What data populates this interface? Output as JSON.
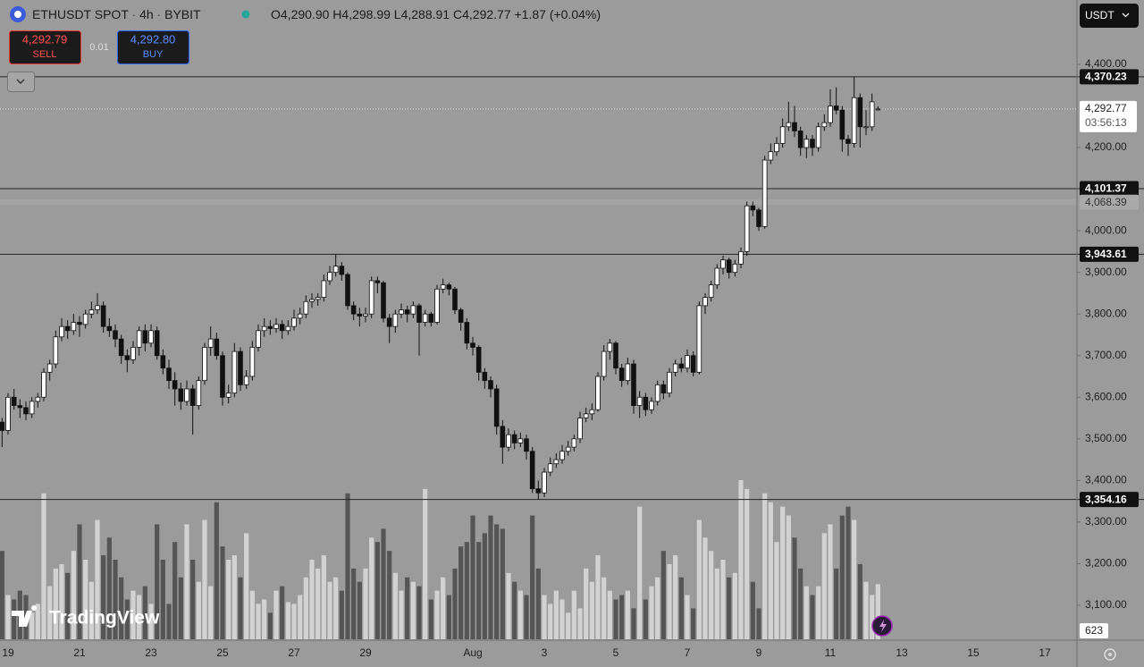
{
  "header": {
    "symbol": "ETHUSDT SPOT",
    "interval": "4h",
    "exchange": "BYBIT",
    "ohlc": [
      {
        "key": "O",
        "value": "4,290.90"
      },
      {
        "key": "H",
        "value": "4,298.99"
      },
      {
        "key": "L",
        "value": "4,288.91"
      },
      {
        "key": "C",
        "value": "4,292.77"
      }
    ],
    "change": "+1.87 (+0.04%)"
  },
  "trade": {
    "sell_price": "4,292.79",
    "sell": "SELL",
    "qty": "0.01",
    "buy_price": "4,292.80",
    "buy": "BUY"
  },
  "currency": "USDT",
  "watermark": "TradingView",
  "chart_data": {
    "type": "candlestick",
    "ylim": [
      3018.2,
      4554.7
    ],
    "yticks": [
      {
        "value": 4400,
        "label": "4,400.00"
      },
      {
        "value": 4200,
        "label": "4,200.00"
      },
      {
        "value": 4000,
        "label": "4,000.00"
      },
      {
        "value": 3900,
        "label": "3,900.00"
      },
      {
        "value": 3800,
        "label": "3,800.00"
      },
      {
        "value": 3700,
        "label": "3,700.00"
      },
      {
        "value": 3600,
        "label": "3,600.00"
      },
      {
        "value": 3500,
        "label": "3,500.00"
      },
      {
        "value": 3400,
        "label": "3,400.00"
      },
      {
        "value": 3300,
        "label": "3,300.00"
      },
      {
        "value": 3200,
        "label": "3,200.00"
      },
      {
        "value": 3100,
        "label": "3,100.00"
      }
    ],
    "xlim": [
      -0.35,
      180.4
    ],
    "xticks": [
      {
        "value": 1,
        "label": "19"
      },
      {
        "value": 13,
        "label": "21"
      },
      {
        "value": 25,
        "label": "23"
      },
      {
        "value": 37,
        "label": "25"
      },
      {
        "value": 49,
        "label": "27"
      },
      {
        "value": 61,
        "label": "29"
      },
      {
        "value": 79,
        "label": "Aug"
      },
      {
        "value": 91,
        "label": "3"
      },
      {
        "value": 103,
        "label": "5"
      },
      {
        "value": 115,
        "label": "7"
      },
      {
        "value": 127,
        "label": "9"
      },
      {
        "value": 139,
        "label": "11"
      },
      {
        "value": 151,
        "label": "13"
      },
      {
        "value": 163,
        "label": "15"
      },
      {
        "value": 175,
        "label": "17"
      }
    ],
    "up_color": "#ffffff",
    "down_color": "#111111",
    "volume_up_color": "#d2d2d2",
    "volume_down_color": "#555555",
    "levels": [
      {
        "value": 4370.23,
        "label": "4,370.23"
      },
      {
        "value": 4101.37,
        "label": "4,101.37"
      },
      {
        "value": 3943.61,
        "label": "3,943.61"
      },
      {
        "value": 3354.16,
        "label": "3,354.16"
      }
    ],
    "marker": {
      "value": 4068.39,
      "label": "4,068.39"
    },
    "last_price": {
      "value": 4292.77,
      "label": "4,292.77",
      "countdown": "03:56:13"
    },
    "last_volume": {
      "value": 623,
      "label": "623"
    },
    "ohlc": [
      [
        3540,
        3550,
        3480,
        3520
      ],
      [
        3520,
        3610,
        3510,
        3600
      ],
      [
        3600,
        3620,
        3570,
        3580
      ],
      [
        3580,
        3595,
        3550,
        3575
      ],
      [
        3575,
        3590,
        3545,
        3560
      ],
      [
        3560,
        3600,
        3550,
        3590
      ],
      [
        3590,
        3610,
        3575,
        3600
      ],
      [
        3600,
        3670,
        3590,
        3660
      ],
      [
        3660,
        3690,
        3640,
        3680
      ],
      [
        3680,
        3760,
        3670,
        3745
      ],
      [
        3745,
        3790,
        3735,
        3770
      ],
      [
        3770,
        3785,
        3740,
        3760
      ],
      [
        3760,
        3800,
        3750,
        3780
      ],
      [
        3780,
        3795,
        3745,
        3775
      ],
      [
        3775,
        3810,
        3765,
        3800
      ],
      [
        3800,
        3830,
        3790,
        3810
      ],
      [
        3810,
        3850,
        3800,
        3820
      ],
      [
        3820,
        3830,
        3755,
        3770
      ],
      [
        3770,
        3790,
        3745,
        3760
      ],
      [
        3760,
        3775,
        3720,
        3740
      ],
      [
        3740,
        3750,
        3680,
        3700
      ],
      [
        3700,
        3715,
        3660,
        3690
      ],
      [
        3690,
        3735,
        3680,
        3720
      ],
      [
        3720,
        3770,
        3700,
        3760
      ],
      [
        3760,
        3775,
        3710,
        3730
      ],
      [
        3730,
        3775,
        3720,
        3760
      ],
      [
        3760,
        3770,
        3690,
        3700
      ],
      [
        3700,
        3715,
        3655,
        3670
      ],
      [
        3670,
        3690,
        3620,
        3640
      ],
      [
        3640,
        3660,
        3580,
        3620
      ],
      [
        3620,
        3635,
        3570,
        3590
      ],
      [
        3590,
        3640,
        3580,
        3620
      ],
      [
        3620,
        3630,
        3510,
        3580
      ],
      [
        3580,
        3650,
        3570,
        3640
      ],
      [
        3640,
        3730,
        3630,
        3720
      ],
      [
        3720,
        3770,
        3700,
        3740
      ],
      [
        3740,
        3755,
        3690,
        3700
      ],
      [
        3700,
        3710,
        3580,
        3600
      ],
      [
        3600,
        3630,
        3585,
        3610
      ],
      [
        3610,
        3730,
        3600,
        3710
      ],
      [
        3710,
        3720,
        3615,
        3630
      ],
      [
        3630,
        3665,
        3620,
        3650
      ],
      [
        3650,
        3735,
        3640,
        3720
      ],
      [
        3720,
        3775,
        3710,
        3760
      ],
      [
        3760,
        3790,
        3745,
        3770
      ],
      [
        3770,
        3785,
        3750,
        3765
      ],
      [
        3765,
        3790,
        3755,
        3775
      ],
      [
        3775,
        3785,
        3740,
        3760
      ],
      [
        3760,
        3785,
        3750,
        3770
      ],
      [
        3770,
        3810,
        3760,
        3790
      ],
      [
        3790,
        3815,
        3775,
        3800
      ],
      [
        3800,
        3845,
        3790,
        3830
      ],
      [
        3830,
        3850,
        3815,
        3835
      ],
      [
        3835,
        3850,
        3820,
        3840
      ],
      [
        3840,
        3895,
        3830,
        3880
      ],
      [
        3880,
        3915,
        3870,
        3900
      ],
      [
        3900,
        3943.61,
        3890,
        3915
      ],
      [
        3915,
        3925,
        3880,
        3895
      ],
      [
        3895,
        3900,
        3810,
        3820
      ],
      [
        3820,
        3830,
        3785,
        3800
      ],
      [
        3800,
        3815,
        3770,
        3795
      ],
      [
        3795,
        3815,
        3780,
        3800
      ],
      [
        3800,
        3890,
        3790,
        3880
      ],
      [
        3880,
        3890,
        3850,
        3875
      ],
      [
        3875,
        3880,
        3780,
        3790
      ],
      [
        3790,
        3800,
        3730,
        3770
      ],
      [
        3770,
        3810,
        3755,
        3800
      ],
      [
        3800,
        3825,
        3790,
        3810
      ],
      [
        3810,
        3820,
        3780,
        3800
      ],
      [
        3800,
        3830,
        3790,
        3820
      ],
      [
        3820,
        3825,
        3700,
        3780
      ],
      [
        3780,
        3810,
        3770,
        3800
      ],
      [
        3800,
        3805,
        3770,
        3780
      ],
      [
        3780,
        3870,
        3775,
        3860
      ],
      [
        3860,
        3885,
        3850,
        3870
      ],
      [
        3870,
        3875,
        3845,
        3860
      ],
      [
        3860,
        3865,
        3800,
        3810
      ],
      [
        3810,
        3815,
        3760,
        3780
      ],
      [
        3780,
        3790,
        3715,
        3730
      ],
      [
        3730,
        3745,
        3700,
        3720
      ],
      [
        3720,
        3725,
        3640,
        3660
      ],
      [
        3660,
        3670,
        3620,
        3640
      ],
      [
        3640,
        3650,
        3600,
        3620
      ],
      [
        3620,
        3630,
        3510,
        3530
      ],
      [
        3530,
        3545,
        3440,
        3480
      ],
      [
        3480,
        3525,
        3470,
        3510
      ],
      [
        3510,
        3520,
        3475,
        3490
      ],
      [
        3490,
        3515,
        3480,
        3500
      ],
      [
        3500,
        3510,
        3450,
        3470
      ],
      [
        3470,
        3480,
        3370,
        3380
      ],
      [
        3380,
        3400,
        3354.16,
        3370
      ],
      [
        3370,
        3430,
        3360,
        3420
      ],
      [
        3420,
        3455,
        3410,
        3440
      ],
      [
        3440,
        3465,
        3430,
        3450
      ],
      [
        3450,
        3485,
        3440,
        3470
      ],
      [
        3470,
        3495,
        3460,
        3480
      ],
      [
        3480,
        3510,
        3470,
        3500
      ],
      [
        3500,
        3565,
        3490,
        3550
      ],
      [
        3550,
        3575,
        3540,
        3560
      ],
      [
        3560,
        3585,
        3545,
        3570
      ],
      [
        3570,
        3660,
        3565,
        3650
      ],
      [
        3650,
        3725,
        3640,
        3710
      ],
      [
        3710,
        3740,
        3690,
        3730
      ],
      [
        3730,
        3735,
        3655,
        3670
      ],
      [
        3670,
        3680,
        3625,
        3640
      ],
      [
        3640,
        3695,
        3630,
        3680
      ],
      [
        3680,
        3690,
        3560,
        3580
      ],
      [
        3580,
        3615,
        3550,
        3600
      ],
      [
        3600,
        3610,
        3555,
        3570
      ],
      [
        3570,
        3600,
        3560,
        3590
      ],
      [
        3590,
        3640,
        3580,
        3630
      ],
      [
        3630,
        3640,
        3595,
        3610
      ],
      [
        3610,
        3670,
        3600,
        3660
      ],
      [
        3660,
        3690,
        3650,
        3680
      ],
      [
        3680,
        3695,
        3660,
        3670
      ],
      [
        3670,
        3715,
        3660,
        3700
      ],
      [
        3700,
        3710,
        3650,
        3660
      ],
      [
        3660,
        3830,
        3655,
        3820
      ],
      [
        3820,
        3850,
        3800,
        3840
      ],
      [
        3840,
        3880,
        3830,
        3870
      ],
      [
        3870,
        3920,
        3860,
        3910
      ],
      [
        3910,
        3940,
        3895,
        3930
      ],
      [
        3930,
        3935,
        3885,
        3900
      ],
      [
        3900,
        3930,
        3890,
        3920
      ],
      [
        3920,
        3960,
        3910,
        3950
      ],
      [
        3950,
        4070,
        3940,
        4060
      ],
      [
        4060,
        4070,
        4035,
        4050
      ],
      [
        4050,
        4055,
        4000,
        4010
      ],
      [
        4010,
        4180,
        4005,
        4170
      ],
      [
        4170,
        4210,
        4160,
        4190
      ],
      [
        4190,
        4225,
        4180,
        4210
      ],
      [
        4210,
        4270,
        4200,
        4250
      ],
      [
        4250,
        4310,
        4240,
        4260
      ],
      [
        4260,
        4300,
        4225,
        4240
      ],
      [
        4240,
        4250,
        4180,
        4200
      ],
      [
        4200,
        4230,
        4175,
        4220
      ],
      [
        4220,
        4230,
        4180,
        4200
      ],
      [
        4200,
        4260,
        4190,
        4250
      ],
      [
        4250,
        4280,
        4240,
        4260
      ],
      [
        4260,
        4340,
        4250,
        4300
      ],
      [
        4300,
        4345,
        4280,
        4290
      ],
      [
        4290,
        4300,
        4190,
        4220
      ],
      [
        4220,
        4230,
        4180,
        4210
      ],
      [
        4210,
        4370.23,
        4200,
        4320
      ],
      [
        4320,
        4330,
        4200,
        4250
      ],
      [
        4250,
        4290,
        4230,
        4250
      ],
      [
        4250,
        4330,
        4240,
        4310
      ],
      [
        4290.9,
        4298.99,
        4288.91,
        4292.77
      ]
    ],
    "volume": [
      1000,
      500,
      450,
      550,
      500,
      300,
      400,
      1650,
      600,
      800,
      850,
      750,
      1000,
      1300,
      900,
      650,
      1350,
      950,
      1150,
      900,
      700,
      450,
      550,
      500,
      600,
      400,
      1300,
      900,
      400,
      1100,
      700,
      1300,
      900,
      650,
      1350,
      600,
      1550,
      1050,
      900,
      950,
      700,
      1200,
      550,
      400,
      450,
      300,
      550,
      600,
      420,
      400,
      500,
      700,
      900,
      800,
      950,
      650,
      700,
      550,
      1650,
      800,
      650,
      800,
      1150,
      1100,
      1250,
      1000,
      750,
      550,
      700,
      650,
      600,
      1700,
      450,
      550,
      700,
      500,
      800,
      1050,
      1100,
      1400,
      1100,
      1200,
      1400,
      1300,
      1250,
      750,
      650,
      550,
      500,
      1400,
      800,
      500,
      400,
      550,
      450,
      300,
      550,
      350,
      800,
      650,
      950,
      700,
      550,
      450,
      500,
      550,
      350,
      1500,
      450,
      600,
      700,
      1000,
      850,
      950,
      700,
      500,
      350,
      1350,
      1150,
      1000,
      800,
      900,
      700,
      750,
      1800,
      1700,
      650,
      350,
      1650,
      1550,
      1100,
      1500,
      1400,
      1150,
      800,
      600,
      500,
      600,
      1200,
      1300,
      800,
      1400,
      1500,
      1350,
      850,
      650,
      500,
      623
    ]
  }
}
